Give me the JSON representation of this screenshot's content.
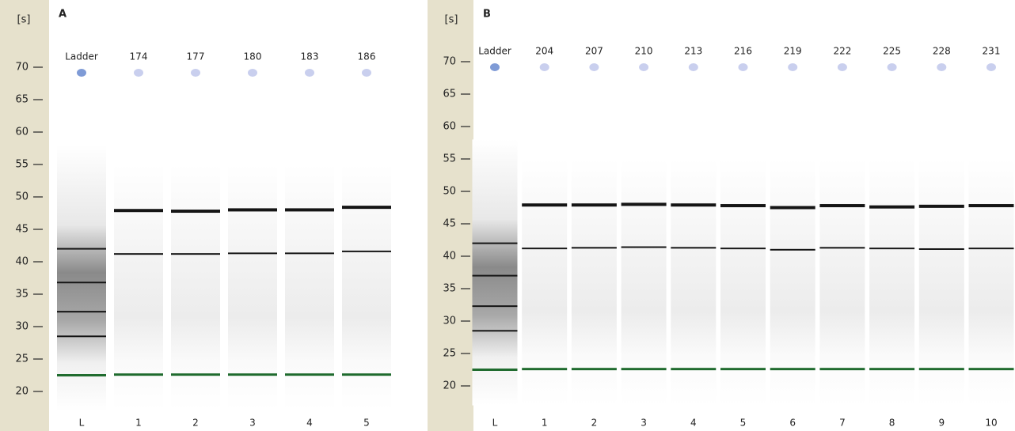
{
  "chart_data": [
    {
      "type": "gel",
      "label": "A",
      "y_label": "[s]",
      "ylim": [
        15,
        75
      ],
      "yticks": [
        20,
        25,
        30,
        35,
        40,
        45,
        50,
        55,
        60,
        65,
        70
      ],
      "categories": [
        "L",
        "1",
        "2",
        "3",
        "4",
        "5"
      ],
      "samples": [
        "Ladder",
        "174",
        "177",
        "180",
        "183",
        "186"
      ],
      "marker": [
        22.5,
        22.6,
        22.6,
        22.6,
        22.6,
        22.6
      ],
      "marker_color": "#1f6b2e",
      "band_color": "#151515",
      "bands": [
        [
          28.5,
          32.3,
          36.8,
          42
        ],
        [
          41.2,
          47.9
        ],
        [
          41.2,
          47.8
        ],
        [
          41.3,
          48
        ],
        [
          41.3,
          48
        ],
        [
          41.6,
          48.4
        ]
      ]
    },
    {
      "type": "gel",
      "label": "B",
      "y_label": "[s]",
      "ylim": [
        15,
        75
      ],
      "yticks": [
        20,
        25,
        30,
        35,
        40,
        45,
        50,
        55,
        60,
        65,
        70
      ],
      "categories": [
        "L",
        "1",
        "2",
        "3",
        "4",
        "5",
        "6",
        "7",
        "8",
        "9",
        "10"
      ],
      "samples": [
        "Ladder",
        "204",
        "207",
        "210",
        "213",
        "216",
        "219",
        "222",
        "225",
        "228",
        "231"
      ],
      "marker": [
        22.5,
        22.6,
        22.6,
        22.6,
        22.6,
        22.6,
        22.6,
        22.6,
        22.6,
        22.6,
        22.6
      ],
      "marker_color": "#1f6b2e",
      "band_color": "#151515",
      "bands": [
        [
          28.5,
          32.3,
          37,
          42
        ],
        [
          41.2,
          47.9
        ],
        [
          41.3,
          47.9
        ],
        [
          41.4,
          48
        ],
        [
          41.3,
          47.9
        ],
        [
          41.2,
          47.8
        ],
        [
          41,
          47.5
        ],
        [
          41.3,
          47.8
        ],
        [
          41.2,
          47.6
        ],
        [
          41.1,
          47.7
        ],
        [
          41.2,
          47.8
        ]
      ]
    }
  ]
}
